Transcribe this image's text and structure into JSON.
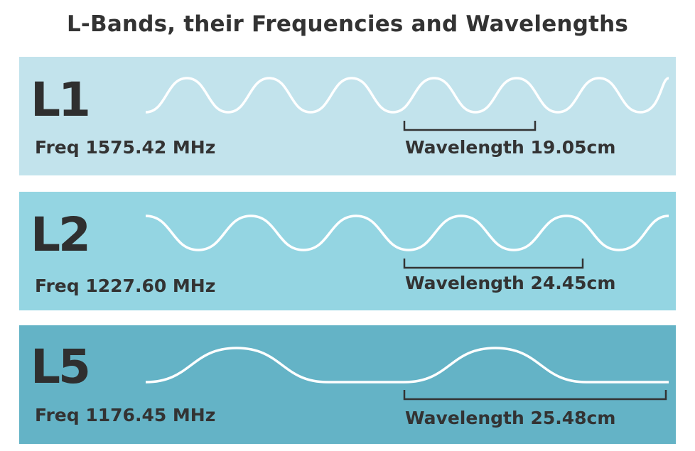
{
  "title": "L-Bands, their Frequencies and Wavelengths",
  "colors": {
    "text": "#333333",
    "wave": "#ffffff",
    "bracket": "#333333"
  },
  "bands": [
    {
      "name": "L1",
      "frequency": "Freq 1575.42 MHz",
      "wavelength": "Wavelength 19.05cm",
      "background": "#c2e3ec"
    },
    {
      "name": "L2",
      "frequency": "Freq 1227.60 MHz",
      "wavelength": "Wavelength 24.45cm",
      "background": "#94d5e2"
    },
    {
      "name": "L5",
      "frequency": "Freq 1176.45 MHz",
      "wavelength": "Wavelength 25.48cm",
      "background": "#64b3c6"
    }
  ]
}
